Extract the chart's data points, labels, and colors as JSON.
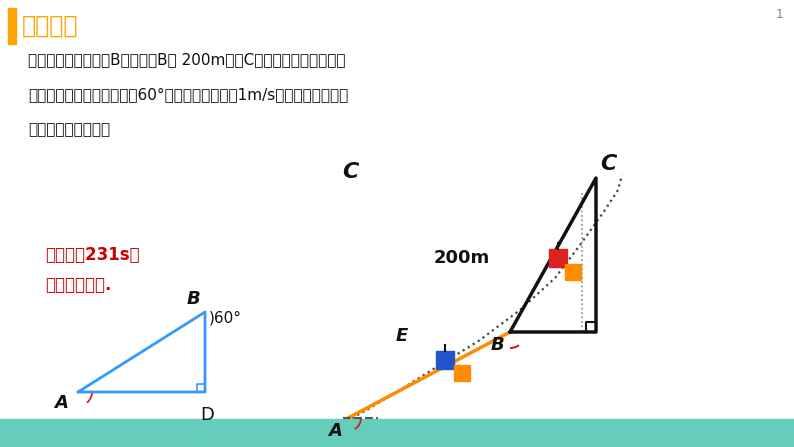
{
  "title_text": "新课讲解",
  "title_bar_color": "#FFA500",
  "title_text_color": "#FFA500",
  "bg_color": "#FFFFFF",
  "problem_line1": "棋棋乘缆车继续从点B到达比点B高 200m的点C，如果这段路程缆车的",
  "problem_line2": "行驶路线与水平面的夹角为60°，缆车行进速度为1m/s，棋棋需要多长时",
  "problem_line3": "间才能到达目的地？",
  "answer_line1": "棋棋需要231s才",
  "answer_line2": "能到达目的地.",
  "answer_color": "#CC0000",
  "page_num": "1",
  "bottom_bar_color": "#66CCBB",
  "left_tri_color": "#3399FF",
  "black_color": "#111111",
  "orange_color": "#FF8C00",
  "blue_sq_color": "#2255CC",
  "red_sq_color": "#DD2222"
}
